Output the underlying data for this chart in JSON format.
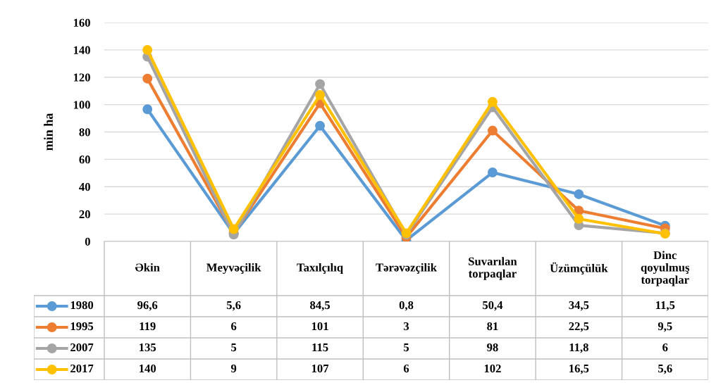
{
  "chart_data": {
    "type": "line",
    "ylabel": "min ha",
    "categories": [
      "Əkin",
      "Meyvəçilik",
      "Taxılçılıq",
      "Tərəvəzçilik",
      "Suvarılan\ntorpaqlar",
      "Üzümçülük",
      "Dinc\nqoyulmuş\ntorpaqlar"
    ],
    "series": [
      {
        "name": "1980",
        "color": "#5b9bd5",
        "values": [
          96.6,
          5.6,
          84.5,
          0.8,
          50.4,
          34.5,
          11.5
        ],
        "value_labels": [
          "96,6",
          "5,6",
          "84,5",
          "0,8",
          "50,4",
          "34,5",
          "11,5"
        ]
      },
      {
        "name": "1995",
        "color": "#ed7d31",
        "values": [
          119,
          6,
          101,
          3,
          81,
          22.5,
          9.5
        ],
        "value_labels": [
          "119",
          "6",
          "101",
          "3",
          "81",
          "22,5",
          "9,5"
        ]
      },
      {
        "name": "2007",
        "color": "#a5a5a5",
        "values": [
          135,
          5,
          115,
          5,
          98,
          11.8,
          6
        ],
        "value_labels": [
          "135",
          "5",
          "115",
          "5",
          "98",
          "11,8",
          "6"
        ]
      },
      {
        "name": "2017",
        "color": "#ffc000",
        "values": [
          140,
          9,
          107,
          6,
          102,
          16.5,
          5.6
        ],
        "value_labels": [
          "140",
          "9",
          "107",
          "6",
          "102",
          "16,5",
          "5,6"
        ]
      }
    ],
    "ylim": [
      0,
      160
    ],
    "yticks": [
      0,
      20,
      40,
      60,
      80,
      100,
      120,
      140,
      160
    ],
    "grid": "y",
    "legend": "bottom",
    "marker": "circle",
    "line_style": "solid"
  }
}
